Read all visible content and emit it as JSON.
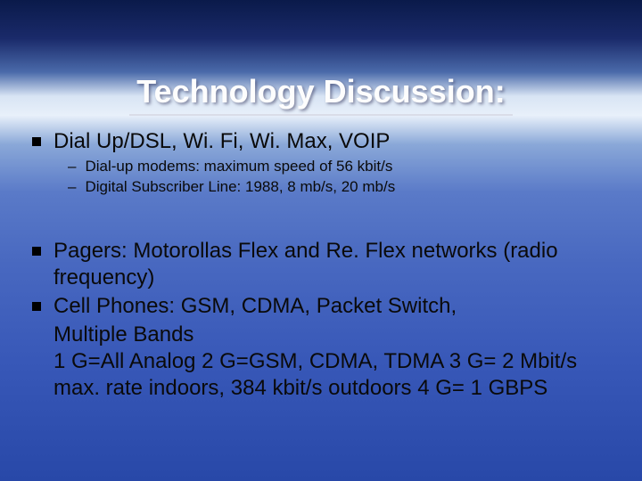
{
  "slide": {
    "title": "Technology Discussion:",
    "title_color": "#fdfdfd",
    "title_fontsize": 36,
    "underline_color": "#dadde8",
    "body_color": "#0a0a0a",
    "body_fontsize": 24,
    "sub_fontsize": 17,
    "bullet_color": "#000000",
    "background_gradient": [
      "#0a1a4a",
      "#1a2a6a",
      "#4a6aaa",
      "#d8e4f4",
      "#e8f0fa",
      "#8aa8d8",
      "#5a7ac8",
      "#4868c0",
      "#3858b8",
      "#2848a8"
    ],
    "bullets": [
      {
        "text": "Dial Up/DSL, Wi. Fi, Wi. Max, VOIP",
        "subs": [
          "Dial-up modems: maximum speed of 56 kbit/s",
          "Digital Subscriber Line: 1988, 8 mb/s, 20 mb/s"
        ]
      },
      {
        "text": "Pagers: Motorollas Flex  and Re. Flex networks (radio frequency)",
        "subs": []
      },
      {
        "text": "Cell Phones: GSM, CDMA, Packet Switch,",
        "subs": []
      }
    ],
    "continuation": [
      "Multiple Bands",
      " 1 G=All Analog  2 G=GSM, CDMA, TDMA  3 G= 2 Mbit/s max. rate indoors, 384 kbit/s outdoors 4 G= 1 GBPS"
    ]
  }
}
